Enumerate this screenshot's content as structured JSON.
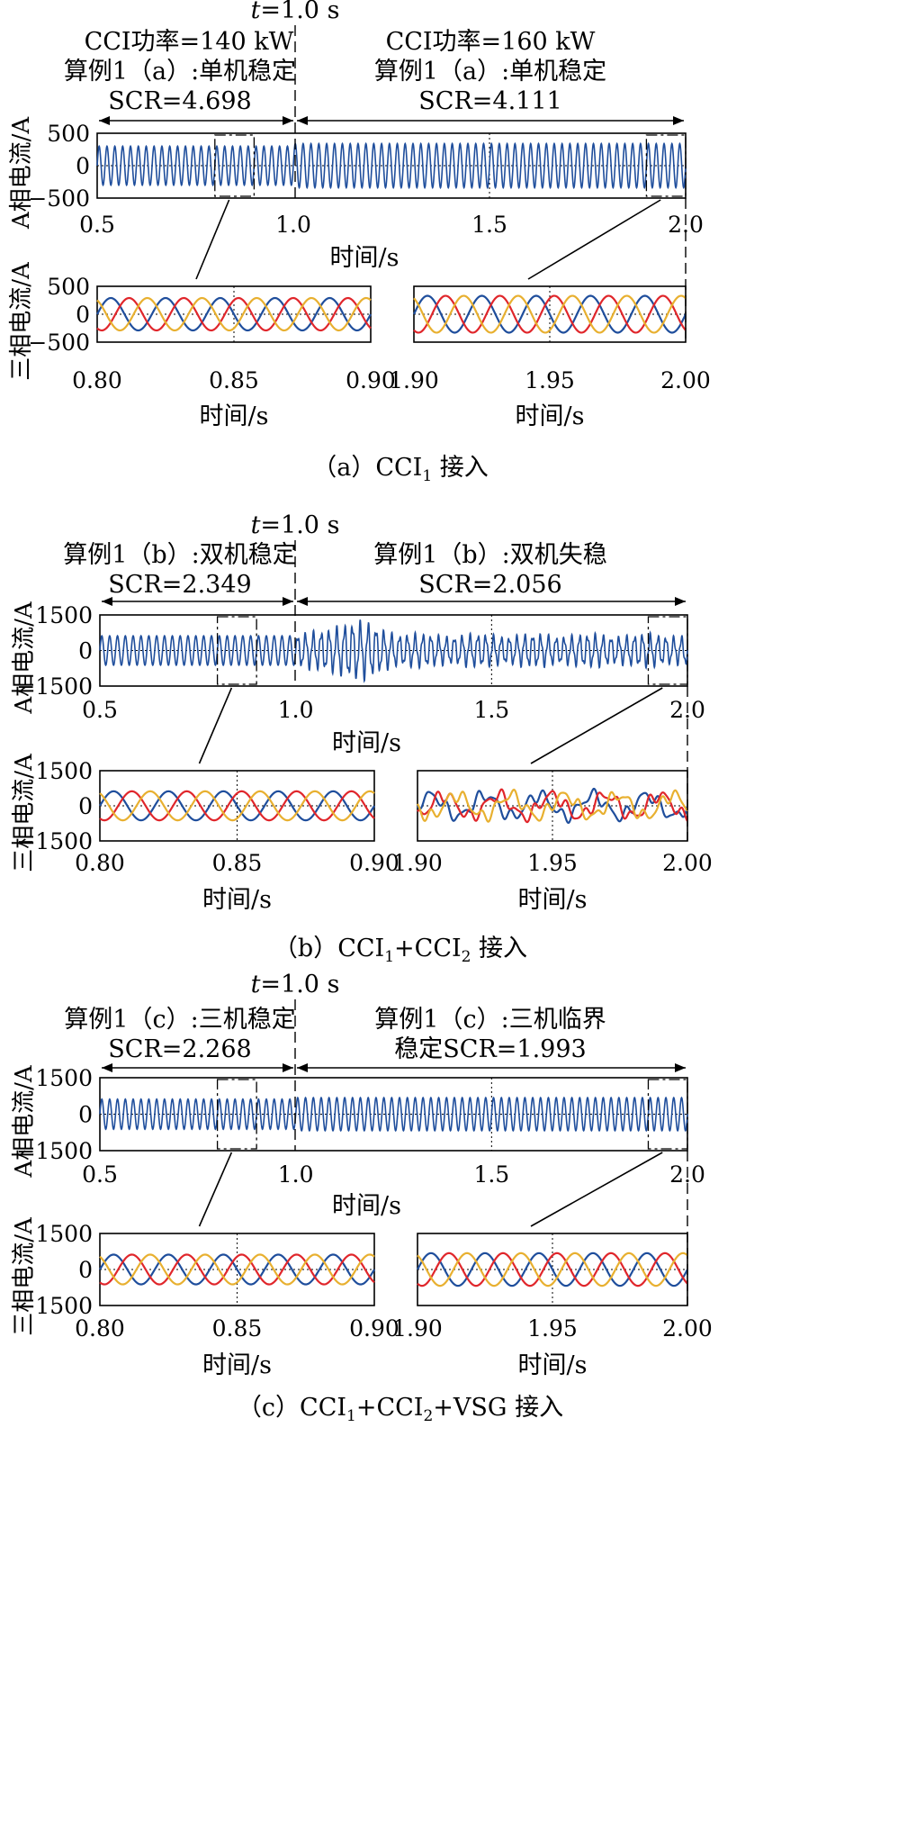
{
  "t_marker": {
    "italic": "t",
    "rest": "=1.0 s"
  },
  "chart_data": [
    {
      "type": "line",
      "panel": "a",
      "caption": {
        "prefix": "（a）CCI",
        "sub": "1",
        "suffix": " 接入"
      },
      "annotation_left": [
        "CCI功率=140 kW",
        "算例1（a）:单机稳定",
        "SCR=4.698"
      ],
      "annotation_right": [
        "CCI功率=160 kW",
        "算例1（a）:单机稳定",
        "SCR=4.111"
      ],
      "main": {
        "ylabel": "A相电流/A",
        "xlabel": "时间/s",
        "xlim": [
          0.5,
          2.0
        ],
        "ylim": [
          -500,
          500
        ],
        "xticks": [
          "0.5",
          "1.0",
          "1.5",
          "2.0"
        ],
        "xtick_values": [
          0.5,
          1.0,
          1.5,
          2.0
        ],
        "yticks": [
          "500",
          "0",
          "−500"
        ],
        "ytick_values": [
          500,
          0,
          -500
        ],
        "series": [
          {
            "color": "#1f4e9c",
            "frequency_hz": 50,
            "segments": [
              {
                "x_from": 0.5,
                "x_to": 1.0,
                "amplitude": 300,
                "oscillation": "none"
              },
              {
                "x_from": 1.0,
                "x_to": 2.0,
                "amplitude": 340,
                "oscillation": "none"
              }
            ]
          }
        ],
        "zoom_windows": [
          [
            0.8,
            0.9
          ],
          [
            1.9,
            2.0
          ]
        ]
      },
      "zoom_panels": [
        {
          "ylabel": "三相电流/A",
          "xlabel": "时间/s",
          "xlim": [
            0.8,
            0.9
          ],
          "ylim": [
            -500,
            500
          ],
          "xticks": [
            "0.80",
            "0.85",
            "0.90"
          ],
          "xtick_values": [
            0.8,
            0.85,
            0.9
          ],
          "yticks": [
            "500",
            "0",
            "−500"
          ],
          "ytick_values": [
            500,
            0,
            -500
          ],
          "amplitude": 290,
          "oscillation": "none"
        },
        {
          "xlabel": "时间/s",
          "xlim": [
            1.9,
            2.0
          ],
          "ylim": [
            -500,
            500
          ],
          "xticks": [
            "1.90",
            "1.95",
            "2.00"
          ],
          "xtick_values": [
            1.9,
            1.95,
            2.0
          ],
          "amplitude": 330,
          "oscillation": "none"
        }
      ]
    },
    {
      "type": "line",
      "panel": "b",
      "caption": {
        "prefix": "（b）CCI",
        "sub": "1",
        "mid": "+CCI",
        "sub2": "2",
        "suffix": " 接入"
      },
      "annotation_left": [
        "算例1（b）:双机稳定",
        "SCR=2.349"
      ],
      "annotation_right": [
        "算例1（b）:双机失稳",
        "SCR=2.056"
      ],
      "main": {
        "ylabel": "A相电流/A",
        "xlabel": "时间/s",
        "xlim": [
          0.5,
          2.0
        ],
        "ylim": [
          -1500,
          1500
        ],
        "xticks": [
          "0.5",
          "1.0",
          "1.5",
          "2.0"
        ],
        "xtick_values": [
          0.5,
          1.0,
          1.5,
          2.0
        ],
        "yticks": [
          "1500",
          "0",
          "−1500"
        ],
        "ytick_values": [
          1500,
          0,
          -1500
        ],
        "series": [
          {
            "color": "#1f4e9c",
            "frequency_hz": 50,
            "segments": [
              {
                "x_from": 0.5,
                "x_to": 1.0,
                "amplitude": 620,
                "oscillation": "none"
              },
              {
                "x_from": 1.0,
                "x_to": 2.0,
                "amplitude": 650,
                "oscillation": "unstable",
                "peak": 1200
              }
            ]
          }
        ],
        "zoom_windows": [
          [
            0.8,
            0.9
          ],
          [
            1.9,
            2.0
          ]
        ]
      },
      "zoom_panels": [
        {
          "ylabel": "三相电流/A",
          "xlabel": "时间/s",
          "xlim": [
            0.8,
            0.9
          ],
          "ylim": [
            -1500,
            1500
          ],
          "xticks": [
            "0.80",
            "0.85",
            "0.90"
          ],
          "xtick_values": [
            0.8,
            0.85,
            0.9
          ],
          "yticks": [
            "1500",
            "0",
            "−1500"
          ],
          "ytick_values": [
            1500,
            0,
            -1500
          ],
          "amplitude": 620,
          "oscillation": "none"
        },
        {
          "xlabel": "时间/s",
          "xlim": [
            1.9,
            2.0
          ],
          "ylim": [
            -1500,
            1500
          ],
          "xticks": [
            "1.90",
            "1.95",
            "2.00"
          ],
          "xtick_values": [
            1.9,
            1.95,
            2.0
          ],
          "amplitude": 600,
          "oscillation": "distorted"
        }
      ]
    },
    {
      "type": "line",
      "panel": "c",
      "caption": {
        "prefix": "（c）CCI",
        "sub": "1",
        "mid": "+CCI",
        "sub2": "2",
        "suffix": "+VSG 接入"
      },
      "annotation_left": [
        "算例1（c）:三机稳定",
        "SCR=2.268"
      ],
      "annotation_right": [
        "算例1（c）:三机临界",
        "稳定SCR=1.993"
      ],
      "main": {
        "ylabel": "A相电流/A",
        "xlabel": "时间/s",
        "xlim": [
          0.5,
          2.0
        ],
        "ylim": [
          -1500,
          1500
        ],
        "xticks": [
          "0.5",
          "1.0",
          "1.5",
          "2.0"
        ],
        "xtick_values": [
          0.5,
          1.0,
          1.5,
          2.0
        ],
        "yticks": [
          "1500",
          "0",
          "−1500"
        ],
        "ytick_values": [
          1500,
          0,
          -1500
        ],
        "series": [
          {
            "color": "#1f4e9c",
            "frequency_hz": 50,
            "segments": [
              {
                "x_from": 0.5,
                "x_to": 1.0,
                "amplitude": 620,
                "oscillation": "none"
              },
              {
                "x_from": 1.0,
                "x_to": 2.0,
                "amplitude": 680,
                "oscillation": "none"
              }
            ]
          }
        ],
        "zoom_windows": [
          [
            0.8,
            0.9
          ],
          [
            1.9,
            2.0
          ]
        ]
      },
      "zoom_panels": [
        {
          "ylabel": "三相电流/A",
          "xlabel": "时间/s",
          "xlim": [
            0.8,
            0.9
          ],
          "ylim": [
            -1500,
            1500
          ],
          "xticks": [
            "0.80",
            "0.85",
            "0.90"
          ],
          "xtick_values": [
            0.8,
            0.85,
            0.9
          ],
          "yticks": [
            "1500",
            "0",
            "−1500"
          ],
          "ytick_values": [
            1500,
            0,
            -1500
          ],
          "amplitude": 620,
          "oscillation": "none"
        },
        {
          "xlabel": "时间/s",
          "xlim": [
            1.9,
            2.0
          ],
          "ylim": [
            -1500,
            1500
          ],
          "xticks": [
            "1.90",
            "1.95",
            "2.00"
          ],
          "xtick_values": [
            1.9,
            1.95,
            2.0
          ],
          "amplitude": 680,
          "oscillation": "none"
        }
      ]
    }
  ],
  "phase_colors": [
    "#1f4e9c",
    "#e0262b",
    "#e8b030"
  ]
}
